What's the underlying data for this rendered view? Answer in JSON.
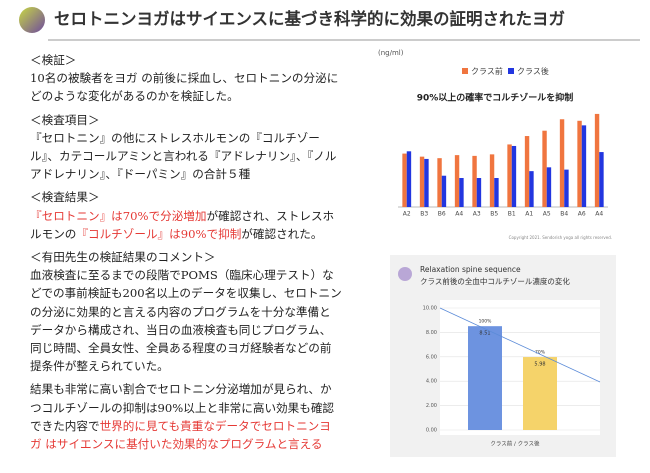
{
  "header": {
    "title": "セロトニンヨガはサイエンスに基づき科学的に効果の証明されたヨガ"
  },
  "sections": [
    {
      "heading": "＜検証＞",
      "paragraphs": [
        [
          {
            "text": "10名の被験者をヨガ の前後に採血し、セロトニンの分泌にどのような変化があるのかを検証した。"
          }
        ]
      ]
    },
    {
      "heading": "＜検査項目＞",
      "paragraphs": [
        [
          {
            "text": "『セロトニン』の他にストレスホルモンの『コルチゾール』、カテコールアミンと言われる『アドレナリン』、『ノルアドレナリン』、『ドーパミン』の合計５種"
          }
        ]
      ]
    },
    {
      "heading": "＜検査結果＞",
      "paragraphs": [
        [
          {
            "text": "『セロトニン』は70%で分泌増加",
            "color": "#e53935"
          },
          {
            "text": "が確認され、ストレスホルモンの"
          },
          {
            "text": "『コルチゾール』は90%で抑制",
            "color": "#e53935"
          },
          {
            "text": "が確認された。"
          }
        ]
      ]
    },
    {
      "heading": "＜有田先生の検証結果のコメント＞",
      "paragraphs": [
        [
          {
            "text": "血液検査に至るまでの段階でPOMS（臨床心理テスト）などでの事前検証も200名以上のデータを収集し、セロトニンの分泌に効果的と言える内容のプログラムを十分な準備とデータから構成され、当日の血液検査も同じプログラム、同じ時間、全員女性、全員ある程度のヨガ経験者などの前提条件が整えられていた。"
          }
        ],
        [
          {
            "text": "結果も非常に高い割合でセロトニン分泌増加が見られ、かつコルチゾールの抑制は90%以上と非常に高い効果も確認できた内容で"
          },
          {
            "text": "世界的に見ても貴重なデータでセロトニンヨガ はサイエンスに基付いた効果的なプログラムと言える",
            "color": "#e53935"
          }
        ]
      ]
    }
  ],
  "chart_data": [
    {
      "type": "bar",
      "title": "90%以上の確率でコルチゾールを抑制",
      "y_label": "(ng/ml)",
      "categories": [
        "A2",
        "B3",
        "B6",
        "A4",
        "A3",
        "B5",
        "B1",
        "A1",
        "A5",
        "B4",
        "A6",
        "A4"
      ],
      "series": [
        {
          "name": "クラス前",
          "color": "#f0753f",
          "values": [
            7.0,
            6.6,
            6.4,
            6.8,
            6.7,
            6.9,
            8.2,
            9.3,
            10.0,
            11.5,
            11.3,
            12.2
          ]
        },
        {
          "name": "クラス後",
          "color": "#2236e0",
          "values": [
            7.3,
            6.3,
            4.1,
            3.8,
            3.8,
            3.8,
            8.0,
            4.7,
            5.2,
            4.9,
            10.7,
            7.2
          ]
        }
      ],
      "ylim": [
        0,
        13.5
      ],
      "legend": "top",
      "footnote": "Copyright 2021. Sendorish yoga all rights reserved."
    },
    {
      "type": "bar",
      "title": "Relaxation spine sequence",
      "subtitle": "クラス前後の全血中コルチゾール濃度の変化",
      "categories": [
        "クラス前 / クラス後"
      ],
      "series": [
        {
          "color": "#6d93e0",
          "values": [
            8.51
          ],
          "percent_labels": [
            "100%"
          ]
        },
        {
          "color": "#f5d36a",
          "values": [
            5.98
          ],
          "percent_labels": [
            "70%"
          ]
        }
      ],
      "ylim": [
        0,
        10
      ],
      "yticks": [
        {
          "value": 0,
          "label": "0.00"
        },
        {
          "value": 2,
          "label": "2.00"
        },
        {
          "value": 4,
          "label": "4.00"
        },
        {
          "value": 6,
          "label": "6.00"
        },
        {
          "value": 8,
          "label": "8.00"
        },
        {
          "value": 10,
          "label": "10.00"
        }
      ],
      "grid": true
    }
  ]
}
